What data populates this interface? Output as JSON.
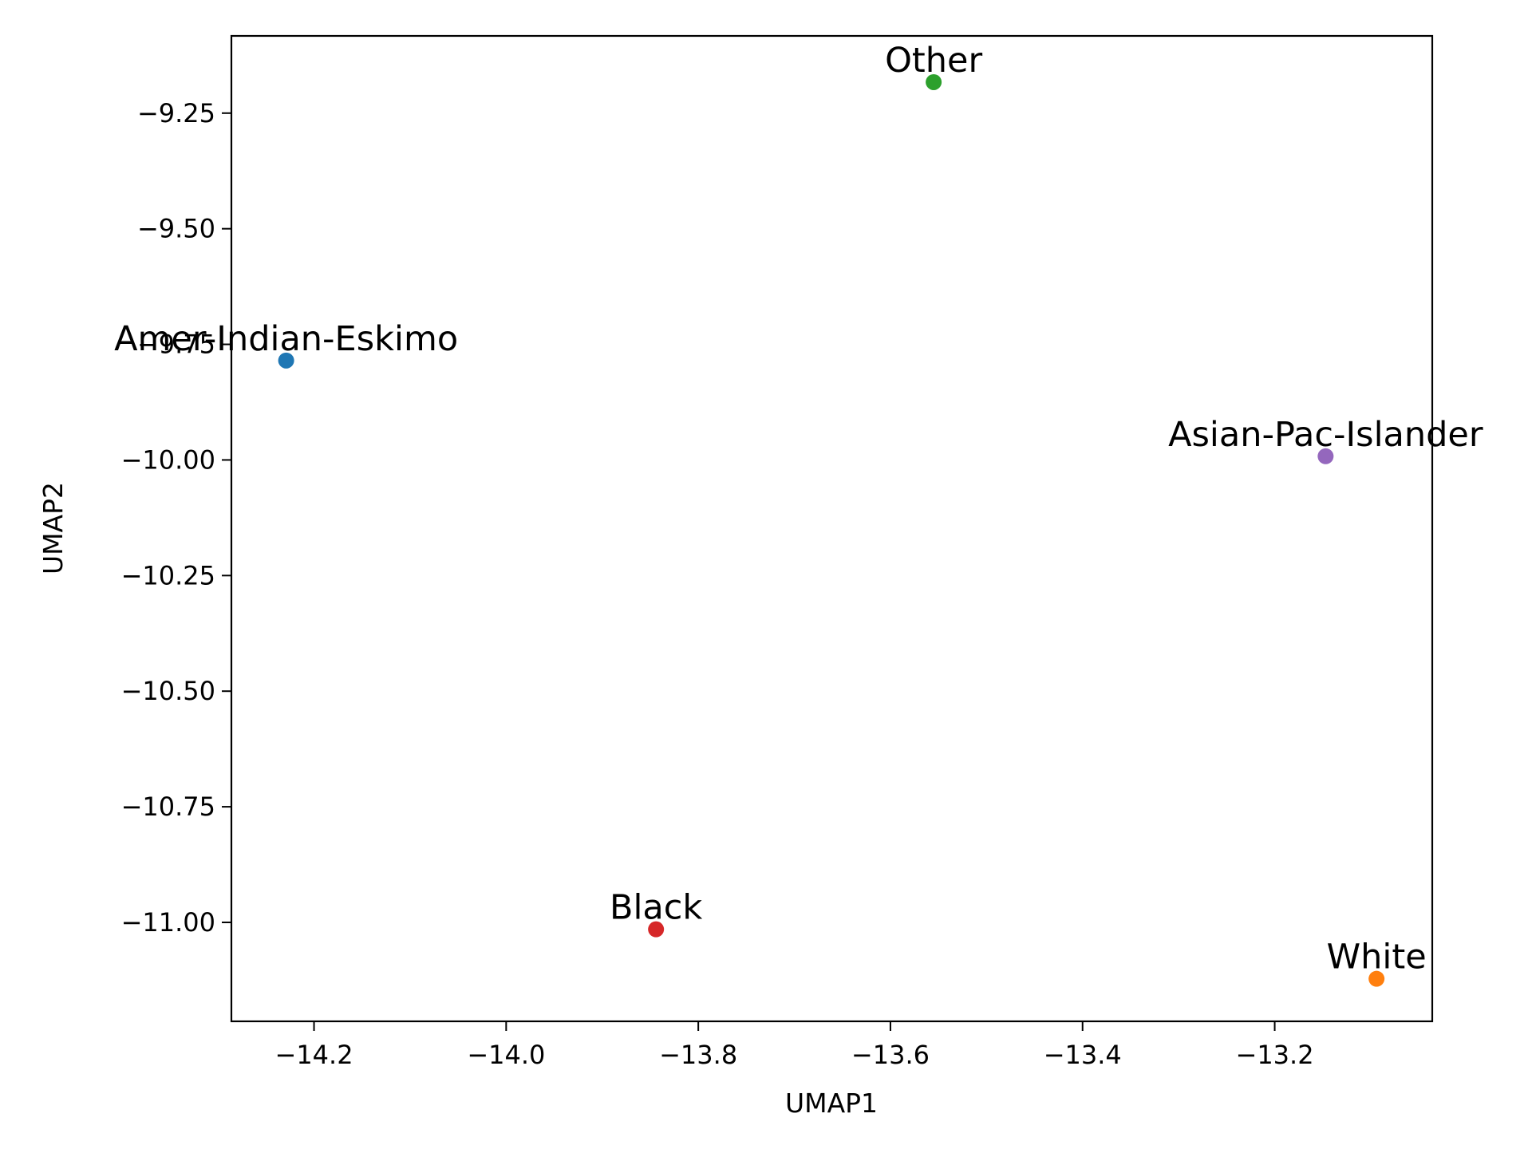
{
  "chart_data": {
    "type": "scatter",
    "title": "",
    "xlabel": "UMAP1",
    "ylabel": "UMAP2",
    "xlim": [
      -14.286,
      -13.036
    ],
    "ylim": [
      -11.214,
      -9.083
    ],
    "xticks": [
      -14.2,
      -14.0,
      -13.8,
      -13.6,
      -13.4,
      -13.2
    ],
    "xtick_labels": [
      "−14.2",
      "−14.0",
      "−13.8",
      "−13.6",
      "−13.4",
      "−13.2"
    ],
    "yticks": [
      -9.25,
      -9.5,
      -9.75,
      -10.0,
      -10.25,
      -10.5,
      -10.75,
      -11.0
    ],
    "ytick_labels": [
      "−9.25",
      "−9.50",
      "−9.75",
      "−10.00",
      "−10.25",
      "−10.50",
      "−10.75",
      "−11.00"
    ],
    "grid": false,
    "points": [
      {
        "label": "Amer-Indian-Eskimo",
        "x": -14.229,
        "y": -9.785,
        "color": "#1f77b4"
      },
      {
        "label": "White",
        "x": -13.094,
        "y": -11.122,
        "color": "#ff7f0e"
      },
      {
        "label": "Other",
        "x": -13.555,
        "y": -9.183,
        "color": "#2ca02c"
      },
      {
        "label": "Black",
        "x": -13.844,
        "y": -11.015,
        "color": "#d62728"
      },
      {
        "label": "Asian-Pac-Islander",
        "x": -13.147,
        "y": -9.992,
        "color": "#9467bd"
      }
    ]
  }
}
